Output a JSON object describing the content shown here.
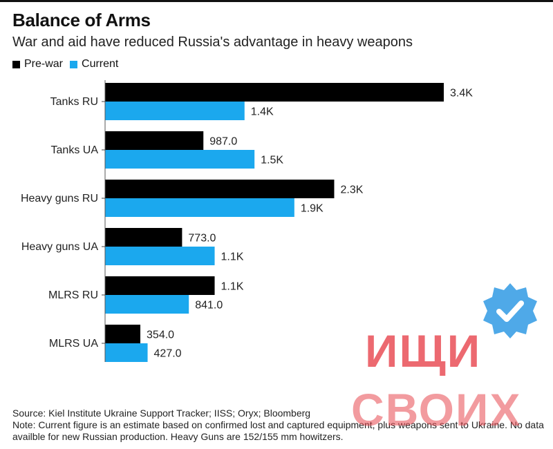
{
  "header": {
    "title": "Balance of Arms",
    "subtitle": "War and aid have reduced Russia's advantage in heavy weapons"
  },
  "legend": {
    "items": [
      {
        "label": "Pre-war",
        "color": "#000000"
      },
      {
        "label": "Current",
        "color": "#1BA8EE"
      }
    ],
    "placement": "top-left"
  },
  "chart_data": {
    "type": "bar",
    "orientation": "horizontal",
    "categories": [
      "Tanks RU",
      "Tanks UA",
      "Heavy guns RU",
      "Heavy guns UA",
      "MLRS RU",
      "MLRS UA"
    ],
    "series": [
      {
        "name": "Pre-war",
        "color": "#000000",
        "values": [
          3400,
          987,
          2300,
          773,
          1100,
          354
        ],
        "labels": [
          "3.4K",
          "987.0",
          "2.3K",
          "773.0",
          "1.1K",
          "354.0"
        ]
      },
      {
        "name": "Current",
        "color": "#1BA8EE",
        "values": [
          1400,
          1500,
          1900,
          1100,
          841,
          427
        ],
        "labels": [
          "1.4K",
          "1.5K",
          "1.9K",
          "1.1K",
          "841.0",
          "427.0"
        ]
      }
    ],
    "xlim": [
      0,
      3400
    ],
    "grid": false,
    "title": "Balance of Arms",
    "subtitle": "War and aid have reduced Russia's advantage in heavy weapons"
  },
  "footer": {
    "source": "Source: Kiel Institute Ukraine Support Tracker; IISS; Oryx; Bloomberg",
    "note": "Note: Current figure is an estimate based on confirmed lost and captured equipment, plus weapons sent to Ukraine. No data availble for new Russian production. Heavy Guns are 152/155 mm howitzers."
  },
  "overlay": {
    "watermark_line1": "ИЩИ",
    "watermark_line2": "СВОИХ",
    "badge_icon": "verified-check-icon",
    "badge_color": "#4FA9E8"
  }
}
